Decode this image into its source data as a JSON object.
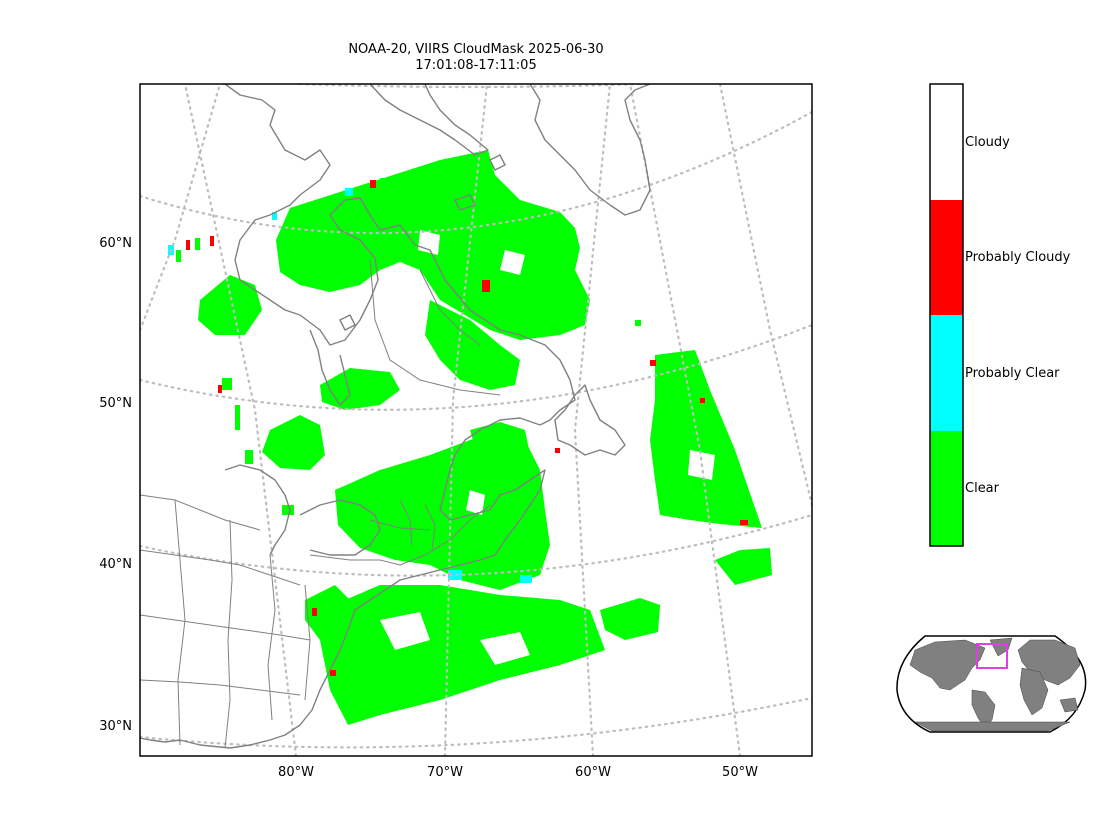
{
  "figure": {
    "title_line1": "NOAA-20, VIIRS CloudMask 2025-06-30",
    "title_line2": "17:01:08-17:11:05"
  },
  "map": {
    "projection": "conic",
    "lon_range": [
      -90,
      -45
    ],
    "lat_range": [
      28,
      68
    ],
    "lat_ticks": [
      {
        "value": 60,
        "label": "60°N"
      },
      {
        "value": 50,
        "label": "50°N"
      },
      {
        "value": 40,
        "label": "40°N"
      },
      {
        "value": 30,
        "label": "30°N"
      }
    ],
    "lon_ticks": [
      {
        "value": -80,
        "label": "80°W"
      },
      {
        "value": -70,
        "label": "70°W"
      },
      {
        "value": -60,
        "label": "60°W"
      },
      {
        "value": -50,
        "label": "50°W"
      }
    ],
    "gridlines": "dotted",
    "coastline_color": "#808080"
  },
  "legend": {
    "categories": [
      {
        "label": "Cloudy",
        "color": "#ffffff"
      },
      {
        "label": "Probably Cloudy",
        "color": "#ff0000"
      },
      {
        "label": "Probably Clear",
        "color": "#00ffff"
      },
      {
        "label": "Clear",
        "color": "#00ff00"
      }
    ]
  },
  "inset": {
    "description_color": "#e040e0",
    "land_color": "#808080"
  },
  "chart_data": {
    "type": "heatmap",
    "title": "NOAA-20, VIIRS CloudMask 2025-06-30 17:01:08-17:11:05",
    "categories": [
      "Cloudy",
      "Probably Cloudy",
      "Probably Clear",
      "Clear"
    ],
    "xlabel": "",
    "ylabel": "",
    "xlim": [
      -90,
      -45
    ],
    "ylim": [
      28,
      68
    ],
    "grid": true,
    "legend": "right"
  }
}
